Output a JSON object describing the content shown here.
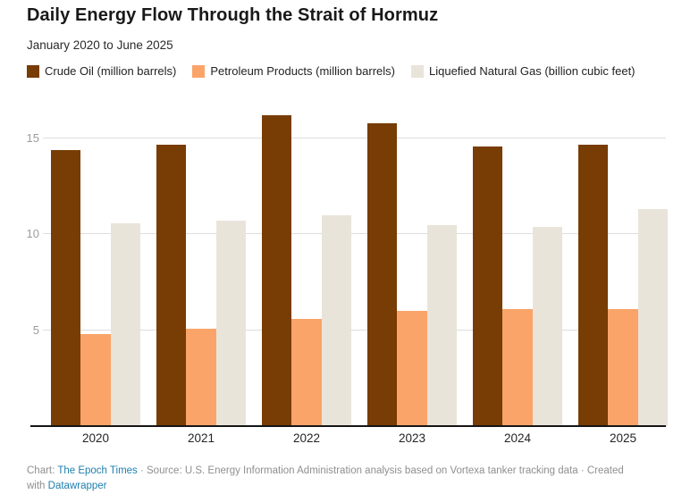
{
  "header": {
    "title": "Daily Energy Flow Through the Strait of Hormuz",
    "subtitle": "January 2020 to June 2025"
  },
  "legend": [
    {
      "key": "crude-oil",
      "label": "Crude Oil (million barrels)",
      "color": "#783c05"
    },
    {
      "key": "petroleum-products",
      "label": "Petroleum Products (million barrels)",
      "color": "#faa469"
    },
    {
      "key": "lng",
      "label": "Liquefied Natural Gas (billion cubic feet)",
      "color": "#e9e4da"
    }
  ],
  "chart_data": {
    "type": "bar",
    "categories": [
      "2020",
      "2021",
      "2022",
      "2023",
      "2024",
      "2025"
    ],
    "series": [
      {
        "key": "crude-oil",
        "name": "Crude Oil (million barrels)",
        "color": "#783c05",
        "values": [
          14.4,
          14.7,
          16.2,
          15.8,
          14.6,
          14.7
        ]
      },
      {
        "key": "petroleum-products",
        "name": "Petroleum Products (million barrels)",
        "color": "#faa469",
        "values": [
          4.8,
          5.1,
          5.6,
          6.0,
          6.1,
          6.1
        ]
      },
      {
        "key": "lng",
        "name": "Liquefied Natural Gas (billion cubic feet)",
        "color": "#e9e4da",
        "values": [
          10.6,
          10.7,
          11.0,
          10.5,
          10.4,
          11.3
        ]
      }
    ],
    "title": "Daily Energy Flow Through the Strait of Hormuz",
    "subtitle": "January 2020 to June 2025",
    "xlabel": "",
    "ylabel": "",
    "yticks": [
      5,
      10,
      15
    ],
    "ylim": [
      0,
      16.4
    ],
    "grid": true,
    "legend_position": "top"
  },
  "footer": {
    "prefix": "Chart: ",
    "chart_credit_link": "The Epoch Times",
    "middle": " · Source: U.S. Energy Information Administration analysis based on Vortexa tanker tracking data · Created with ",
    "tool_link": "Datawrapper"
  }
}
